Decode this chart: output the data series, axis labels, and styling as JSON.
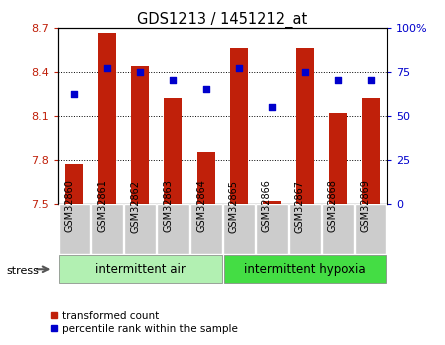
{
  "title": "GDS1213 / 1451212_at",
  "samples": [
    "GSM32860",
    "GSM32861",
    "GSM32862",
    "GSM32863",
    "GSM32864",
    "GSM32865",
    "GSM32866",
    "GSM32867",
    "GSM32868",
    "GSM32869"
  ],
  "bar_values": [
    7.77,
    8.66,
    8.44,
    8.22,
    7.85,
    8.56,
    7.52,
    8.56,
    8.12,
    8.22
  ],
  "dot_values_pct": [
    62,
    77,
    75,
    70,
    65,
    77,
    55,
    75,
    70,
    70
  ],
  "ylim_left": [
    7.5,
    8.7
  ],
  "ylim_right": [
    0,
    100
  ],
  "yticks_left": [
    7.5,
    7.8,
    8.1,
    8.4,
    8.7
  ],
  "yticks_right": [
    0,
    25,
    50,
    75,
    100
  ],
  "ytick_labels_left": [
    "7.5",
    "7.8",
    "8.1",
    "8.4",
    "8.7"
  ],
  "ytick_labels_right": [
    "0",
    "25",
    "50",
    "75",
    "100%"
  ],
  "bar_color": "#c0200a",
  "dot_color": "#0000cc",
  "group1_label": "intermittent air",
  "group2_label": "intermittent hypoxia",
  "stress_label": "stress",
  "legend_bar_label": "transformed count",
  "legend_dot_label": "percentile rank within the sample",
  "group1_color": "#b2f0b2",
  "group2_color": "#44dd44",
  "tick_bg_color": "#cccccc",
  "n_group1": 5,
  "n_group2": 5
}
